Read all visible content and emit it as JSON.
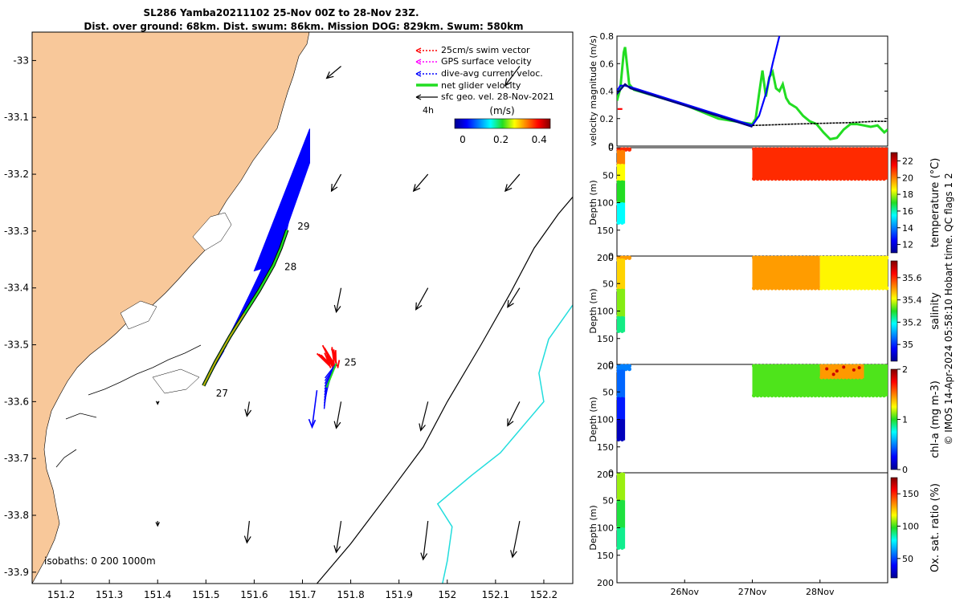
{
  "title": {
    "line1": "SL286 Yamba20211102 25-Nov 00Z to 28-Nov 23Z.",
    "line2": "Dist. over ground: 68km. Dist. swum: 86km. Mission DOG: 829km. Swum: 580km"
  },
  "credit": "© IMOS 14-Apr-2024 05:58:10 Hobart time. QC flags 1  2",
  "colors": {
    "land": "#f8c89a",
    "swim": "#ff0000",
    "gps": "#ff00ff",
    "dive": "#0000ff",
    "net": "#22dd22",
    "geo": "#000000",
    "isobath200": "#000000",
    "isobath1000": "#22dddd"
  },
  "chart_data": [
    {
      "id": "map",
      "type": "scatter",
      "subtype": "trajectory-map",
      "x_ticks": [
        "151.2",
        "151.3",
        "151.4",
        "151.5",
        "151.6",
        "151.7",
        "151.8",
        "151.9",
        "152",
        "152.1",
        "152.2"
      ],
      "y_ticks": [
        "-33",
        "-33.1",
        "-33.2",
        "-33.3",
        "-33.4",
        "-33.5",
        "-33.6",
        "-33.7",
        "-33.8",
        "-33.9"
      ],
      "xlim": [
        151.14,
        152.26
      ],
      "ylim": [
        -33.92,
        -32.95
      ],
      "legend": [
        {
          "label": "25cm/s swim vector",
          "color": "#ff0000",
          "style": "dotted-arrow"
        },
        {
          "label": "GPS surface velocity",
          "color": "#ff00ff",
          "style": "dotted-arrow"
        },
        {
          "label": "dive-avg current veloc.",
          "color": "#0000ff",
          "style": "dotted-arrow"
        },
        {
          "label": "net glider velocity",
          "color": "#22dd22",
          "style": "thick-line"
        },
        {
          "label": "sfc geo. vel. 28-Nov-2021",
          "color": "#000000",
          "style": "arrow"
        }
      ],
      "legend_placement": "top-right",
      "scale_label": "4h",
      "colorbar": {
        "unit": "(m/s)",
        "ticks": [
          "0",
          "0.2",
          "0.4"
        ],
        "range": [
          0,
          0.5
        ]
      },
      "day_labels": [
        {
          "label": "25",
          "lon": 151.77,
          "lat": -33.531
        },
        {
          "label": "27",
          "lon": 151.504,
          "lat": -33.574
        },
        {
          "label": "28",
          "lon": 151.646,
          "lat": -33.357
        },
        {
          "label": "29",
          "lon": 151.673,
          "lat": -33.292
        }
      ],
      "track_upper": [
        [
          151.495,
          -33.572
        ],
        [
          151.52,
          -33.53
        ],
        [
          151.55,
          -33.485
        ],
        [
          151.58,
          -33.445
        ],
        [
          151.61,
          -33.405
        ],
        [
          151.64,
          -33.36
        ],
        [
          151.655,
          -33.33
        ],
        [
          151.668,
          -33.298
        ]
      ],
      "track_lower": [
        [
          151.77,
          -33.533
        ],
        [
          151.762,
          -33.55
        ],
        [
          151.75,
          -33.575
        ],
        [
          151.73,
          -33.61
        ],
        [
          151.72,
          -33.64
        ]
      ],
      "isobath_labels": {
        "text": "isobaths: 0   200  1000m"
      },
      "isobath_200": [
        [
          151.73,
          -33.92
        ],
        [
          151.8,
          -33.85
        ],
        [
          151.88,
          -33.76
        ],
        [
          151.95,
          -33.68
        ],
        [
          152.0,
          -33.6
        ],
        [
          152.07,
          -33.5
        ],
        [
          152.13,
          -33.41
        ],
        [
          152.18,
          -33.33
        ],
        [
          152.23,
          -33.27
        ],
        [
          152.26,
          -33.24
        ]
      ],
      "isobath_1000": [
        [
          151.99,
          -33.92
        ],
        [
          152.0,
          -33.88
        ],
        [
          152.01,
          -33.82
        ],
        [
          151.98,
          -33.78
        ],
        [
          152.05,
          -33.73
        ],
        [
          152.11,
          -33.69
        ],
        [
          152.16,
          -33.64
        ],
        [
          152.2,
          -33.6
        ],
        [
          152.19,
          -33.55
        ],
        [
          152.21,
          -33.49
        ],
        [
          152.26,
          -33.43
        ]
      ],
      "geo_arrows": [
        {
          "lon": 151.78,
          "lat": -33.01,
          "u": -0.3,
          "v": -0.25
        },
        {
          "lon": 151.78,
          "lat": -33.2,
          "u": -0.2,
          "v": -0.35
        },
        {
          "lon": 151.96,
          "lat": -33.2,
          "u": -0.3,
          "v": -0.35
        },
        {
          "lon": 152.15,
          "lat": -33.2,
          "u": -0.3,
          "v": -0.35
        },
        {
          "lon": 152.15,
          "lat": -33.01,
          "u": -0.3,
          "v": -0.4
        },
        {
          "lon": 151.78,
          "lat": -33.4,
          "u": -0.1,
          "v": -0.5
        },
        {
          "lon": 151.96,
          "lat": -33.4,
          "u": -0.25,
          "v": -0.45
        },
        {
          "lon": 152.15,
          "lat": -33.4,
          "u": -0.25,
          "v": -0.4
        },
        {
          "lon": 151.4,
          "lat": -33.6,
          "u": 0.0,
          "v": -0.05
        },
        {
          "lon": 151.59,
          "lat": -33.6,
          "u": -0.05,
          "v": -0.3
        },
        {
          "lon": 151.78,
          "lat": -33.6,
          "u": -0.1,
          "v": -0.55
        },
        {
          "lon": 151.96,
          "lat": -33.6,
          "u": -0.15,
          "v": -0.6
        },
        {
          "lon": 152.15,
          "lat": -33.6,
          "u": -0.25,
          "v": -0.5
        },
        {
          "lon": 151.4,
          "lat": -33.81,
          "u": 0.0,
          "v": -0.1
        },
        {
          "lon": 151.59,
          "lat": -33.81,
          "u": -0.05,
          "v": -0.45
        },
        {
          "lon": 151.78,
          "lat": -33.81,
          "u": -0.1,
          "v": -0.65
        },
        {
          "lon": 151.96,
          "lat": -33.81,
          "u": -0.1,
          "v": -0.8
        },
        {
          "lon": 152.15,
          "lat": -33.81,
          "u": -0.15,
          "v": -0.75
        }
      ]
    },
    {
      "id": "velocity",
      "type": "line",
      "ylabel": "velocity magnitude (m/s)",
      "ylim": [
        0,
        0.8
      ],
      "y_ticks": [
        "0",
        "0.2",
        "0.4",
        "0.6",
        "0.8"
      ],
      "xlim": [
        0,
        4
      ],
      "series": [
        {
          "color": "#22dd22",
          "x": [
            0,
            0.05,
            0.1,
            0.12,
            0.18,
            0.25,
            1.0,
            1.5,
            2.0,
            2.05,
            2.1,
            2.15,
            2.2,
            2.25,
            2.3,
            2.35,
            2.4,
            2.45,
            2.5,
            2.55,
            2.65,
            2.75,
            2.85,
            2.95,
            3.05,
            3.15,
            3.25,
            3.35,
            3.45,
            3.55,
            3.65,
            3.75,
            3.85,
            3.95,
            4.0
          ],
          "y": [
            0.33,
            0.42,
            0.68,
            0.72,
            0.45,
            0.41,
            0.3,
            0.2,
            0.16,
            0.2,
            0.38,
            0.55,
            0.36,
            0.5,
            0.54,
            0.42,
            0.4,
            0.45,
            0.35,
            0.31,
            0.28,
            0.22,
            0.18,
            0.16,
            0.1,
            0.05,
            0.06,
            0.12,
            0.16,
            0.16,
            0.15,
            0.14,
            0.15,
            0.1,
            0.12
          ]
        },
        {
          "color": "#0000ff",
          "x": [
            0,
            0.05,
            0.12,
            0.2,
            2.0,
            2.1,
            2.2,
            2.3,
            2.4
          ],
          "y": [
            0.4,
            0.44,
            0.44,
            0.43,
            0.15,
            0.22,
            0.38,
            0.6,
            0.8
          ]
        },
        {
          "color": "#000080",
          "x": [
            0,
            0.12,
            0.2,
            2.0
          ],
          "y": [
            0.38,
            0.45,
            0.42,
            0.14
          ]
        },
        {
          "color": "#000000",
          "x": [
            2.0,
            2.3,
            2.6,
            3.0,
            3.4,
            3.8,
            4.0
          ],
          "y": [
            0.15,
            0.155,
            0.16,
            0.165,
            0.17,
            0.18,
            0.18
          ]
        },
        {
          "color": "#ff0000",
          "x": [
            0.01,
            0.08
          ],
          "y": [
            0.27,
            0.27
          ]
        }
      ]
    },
    {
      "id": "temperature",
      "type": "heatmap",
      "ylabel": "Depth (m)",
      "ylim": [
        0,
        200
      ],
      "y_ticks": [
        "0",
        "50",
        "100",
        "150",
        "200"
      ],
      "colorbar": {
        "label": "temperature (°C)",
        "ticks": [
          "12",
          "14",
          "16",
          "18",
          "20",
          "22"
        ],
        "range": [
          11,
          23
        ]
      },
      "blocks": [
        {
          "x0": 0,
          "x1": 0.2,
          "d0": 0,
          "d1": 5,
          "value": 21
        },
        {
          "x0": 0,
          "x1": 0.12,
          "d0": 5,
          "d1": 30,
          "value": 20
        },
        {
          "x0": 0,
          "x1": 0.12,
          "d0": 30,
          "d1": 60,
          "value": 18.5
        },
        {
          "x0": 0,
          "x1": 0.12,
          "d0": 60,
          "d1": 100,
          "value": 17
        },
        {
          "x0": 0,
          "x1": 0.12,
          "d0": 100,
          "d1": 138,
          "value": 15.5
        },
        {
          "x0": 2.0,
          "x1": 4.0,
          "d0": 0,
          "d1": 58,
          "value": 21
        }
      ]
    },
    {
      "id": "salinity",
      "type": "heatmap",
      "ylabel": "Depth (m)",
      "ylim": [
        0,
        200
      ],
      "y_ticks": [
        "0",
        "50",
        "100",
        "150",
        "200"
      ],
      "colorbar": {
        "label": "salinity",
        "ticks": [
          "35",
          "35.2",
          "35.4",
          "35.6"
        ],
        "range": [
          34.85,
          35.75
        ]
      },
      "blocks": [
        {
          "x0": 0,
          "x1": 0.2,
          "d0": 0,
          "d1": 5,
          "value": 35.5
        },
        {
          "x0": 0,
          "x1": 0.12,
          "d0": 5,
          "d1": 60,
          "value": 35.45
        },
        {
          "x0": 0,
          "x1": 0.12,
          "d0": 60,
          "d1": 110,
          "value": 35.35
        },
        {
          "x0": 0,
          "x1": 0.12,
          "d0": 110,
          "d1": 138,
          "value": 35.25
        },
        {
          "x0": 2.0,
          "x1": 3.0,
          "d0": 0,
          "d1": 60,
          "value": 35.5
        },
        {
          "x0": 3.0,
          "x1": 4.0,
          "d0": 0,
          "d1": 60,
          "value": 35.42
        }
      ]
    },
    {
      "id": "chla",
      "type": "heatmap",
      "ylabel": "Depth (m)",
      "ylim": [
        0,
        200
      ],
      "y_ticks": [
        "0",
        "50",
        "100",
        "150",
        "200"
      ],
      "colorbar": {
        "label": "chl-a (mg m-3)",
        "ticks": [
          "0",
          "1",
          "2"
        ],
        "range": [
          0,
          2
        ]
      },
      "blocks": [
        {
          "x0": 0,
          "x1": 0.2,
          "d0": 0,
          "d1": 10,
          "value": 0.5
        },
        {
          "x0": 0,
          "x1": 0.12,
          "d0": 10,
          "d1": 60,
          "value": 0.45
        },
        {
          "x0": 0,
          "x1": 0.12,
          "d0": 60,
          "d1": 100,
          "value": 0.3
        },
        {
          "x0": 0,
          "x1": 0.12,
          "d0": 100,
          "d1": 138,
          "value": 0.1
        },
        {
          "x0": 2.0,
          "x1": 4.0,
          "d0": 0,
          "d1": 58,
          "value": 1.05
        },
        {
          "x0": 3.0,
          "x1": 3.65,
          "d0": 0,
          "d1": 25,
          "value": 1.45
        }
      ]
    },
    {
      "id": "oxygen",
      "type": "heatmap",
      "ylabel": "Depth (m)",
      "ylim": [
        0,
        200
      ],
      "y_ticks": [
        "0",
        "50",
        "100",
        "150",
        "200"
      ],
      "x_ticks": [
        "26Nov",
        "27Nov",
        "28Nov"
      ],
      "x_tick_positions": [
        1,
        2,
        3
      ],
      "xlim": [
        0,
        4
      ],
      "colorbar": {
        "label": "Ox. sat. ratio (%)",
        "ticks": [
          "50",
          "100",
          "150"
        ],
        "range": [
          20,
          175
        ]
      },
      "blocks": [
        {
          "x0": 0,
          "x1": 0.12,
          "d0": 0,
          "d1": 50,
          "value": 108
        },
        {
          "x0": 0,
          "x1": 0.12,
          "d0": 50,
          "d1": 100,
          "value": 95
        },
        {
          "x0": 0,
          "x1": 0.12,
          "d0": 100,
          "d1": 138,
          "value": 88
        }
      ]
    }
  ]
}
